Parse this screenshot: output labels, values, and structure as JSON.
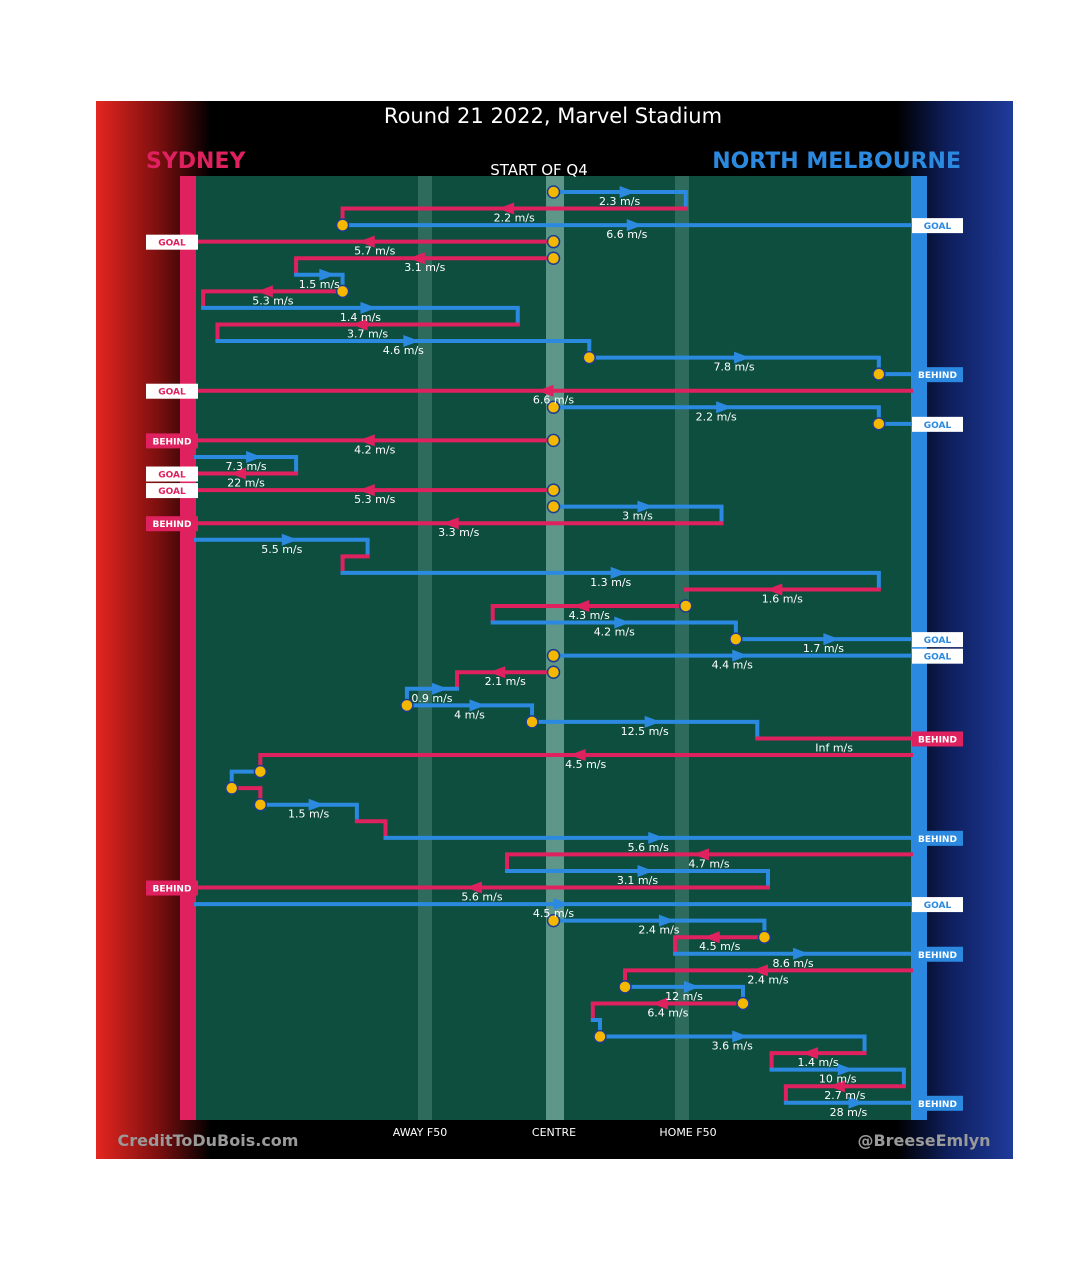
{
  "header": {
    "title": "Round 21 2022, Marvel Stadium",
    "quarter_label": "START OF Q4",
    "home_team": "SYDNEY",
    "away_team": "NORTH MELBOURNE"
  },
  "footer": {
    "credit_left": "CreditToDuBois.com",
    "credit_right": "@BreeseEmlyn",
    "axis_labels": [
      "AWAY F50",
      "CENTRE",
      "HOME F50"
    ]
  },
  "colors": {
    "sydney": "#e0215f",
    "north": "#2b8ae0",
    "field": "#0d4e3f",
    "stop": "#f5b800",
    "stop_edge": "#1a3d8f"
  },
  "chart_data": {
    "type": "line",
    "title": "Round 21 2022, Marvel Stadium",
    "subtitle": "START OF Q4",
    "x_axis": {
      "range": [
        0,
        100
      ],
      "tick_labels": [
        {
          "x": 33.5,
          "label": "AWAY F50"
        },
        {
          "x": 50,
          "label": "CENTRE"
        },
        {
          "x": 67.5,
          "label": "HOME F50"
        }
      ]
    },
    "series": [
      {
        "name": "SYDNEY",
        "color": "#e0215f"
      },
      {
        "name": "NORTH MELBOURNE",
        "color": "#2b8ae0"
      }
    ],
    "chains": [
      {
        "team": "north",
        "row": 0,
        "x0": 50,
        "x1": 68.5,
        "speed": "2.3 m/s",
        "dir": 1,
        "stop": "start",
        "end_drop": 1
      },
      {
        "team": "sydney",
        "row": 1,
        "x0": 68.5,
        "x1": 20.5,
        "speed": "2.2 m/s",
        "dir": -1,
        "end_drop": 1
      },
      {
        "team": "north",
        "row": 2,
        "x0": 20.5,
        "x1": 100,
        "speed": "6.6 m/s",
        "dir": 1,
        "stop": "start",
        "outcome": "GOAL"
      },
      {
        "team": "sydney",
        "row": 3,
        "x0": 50,
        "x1": 0,
        "speed": "5.7 m/s",
        "dir": -1,
        "stop": "start",
        "outcome": "GOAL"
      },
      {
        "team": "sydney",
        "row": 4,
        "x0": 50,
        "x1": 14,
        "speed": "3.1 m/s",
        "dir": -1,
        "stop": "start",
        "end_drop": 1
      },
      {
        "team": "north",
        "row": 5,
        "x0": 14,
        "x1": 20.5,
        "speed": "1.5 m/s",
        "dir": 1,
        "end_drop": 1
      },
      {
        "team": "sydney",
        "row": 6,
        "x0": 20.5,
        "x1": 1,
        "speed": "5.3 m/s",
        "dir": -1,
        "stop": "start",
        "end_drop": 1
      },
      {
        "team": "north",
        "row": 7,
        "x0": 1,
        "x1": 45,
        "speed": "1.4 m/s",
        "dir": 1,
        "end_drop": 1
      },
      {
        "team": "sydney",
        "row": 8,
        "x0": 45,
        "x1": 3,
        "speed": "3.7 m/s",
        "dir": -1,
        "end_drop": 1
      },
      {
        "team": "north",
        "row": 9,
        "x0": 3,
        "x1": 55,
        "speed": "4.6 m/s",
        "dir": 1,
        "end_drop": 1
      },
      {
        "team": "north",
        "row": 10,
        "x0": 55,
        "x1": 95.5,
        "speed": "7.8 m/s",
        "dir": 1,
        "stop": "start",
        "end_drop": 1
      },
      {
        "team": "north",
        "row": 11,
        "x0": 95.5,
        "x1": 100,
        "speed": "",
        "dir": 0,
        "stop": "start",
        "outcome": "BEHIND"
      },
      {
        "team": "sydney",
        "row": 12,
        "x0": 100,
        "x1": 0,
        "speed": "6.6 m/s",
        "dir": -1,
        "outcome": "GOAL"
      },
      {
        "team": "north",
        "row": 13,
        "x0": 50,
        "x1": 95.5,
        "speed": "2.2 m/s",
        "dir": 1,
        "stop": "start",
        "end_drop": 1
      },
      {
        "team": "north",
        "row": 14,
        "x0": 95.5,
        "x1": 100,
        "speed": "",
        "dir": 0,
        "stop": "start",
        "outcome": "GOAL"
      },
      {
        "team": "sydney",
        "row": 15,
        "x0": 50,
        "x1": 0,
        "speed": "4.2 m/s",
        "dir": -1,
        "stop": "start",
        "outcome": "BEHIND"
      },
      {
        "team": "north",
        "row": 16,
        "x0": 0,
        "x1": 14,
        "speed": "7.3 m/s",
        "dir": 1,
        "end_drop": 1
      },
      {
        "team": "sydney",
        "row": 17,
        "x0": 14,
        "x1": 0,
        "speed": "22 m/s",
        "dir": -1,
        "outcome": "GOAL"
      },
      {
        "team": "sydney",
        "row": 18,
        "x0": 50,
        "x1": 0,
        "speed": "5.3 m/s",
        "dir": -1,
        "stop": "start",
        "outcome": "GOAL"
      },
      {
        "team": "north",
        "row": 19,
        "x0": 50,
        "x1": 73.5,
        "speed": "3 m/s",
        "dir": 1,
        "stop": "start",
        "end_drop": 1
      },
      {
        "team": "sydney",
        "row": 20,
        "x0": 73.5,
        "x1": 0,
        "speed": "3.3 m/s",
        "dir": -1,
        "outcome": "BEHIND"
      },
      {
        "team": "north",
        "row": 21,
        "x0": 0,
        "x1": 24,
        "speed": "5.5 m/s",
        "dir": 1,
        "end_drop": 1
      },
      {
        "team": "sydney",
        "row": 22,
        "x0": 24,
        "x1": 20.5,
        "speed": "",
        "dir": 0,
        "end_drop": 1
      },
      {
        "team": "north",
        "row": 23,
        "x0": 20.5,
        "x1": 95.5,
        "speed": "1.3 m/s",
        "dir": 1,
        "end_drop": 1
      },
      {
        "team": "sydney",
        "row": 24,
        "x0": 95.5,
        "x1": 68.5,
        "speed": "1.6 m/s",
        "dir": -1,
        "end_drop": 0
      },
      {
        "team": "sydney",
        "row": 25,
        "x0": 68.5,
        "x1": 41.5,
        "speed": "4.3 m/s",
        "dir": -1,
        "stop": "start",
        "end_drop": 1
      },
      {
        "team": "north",
        "row": 26,
        "x0": 41.5,
        "x1": 75.5,
        "speed": "4.2 m/s",
        "dir": 1,
        "end_drop": 1
      },
      {
        "team": "north",
        "row": 27,
        "x0": 75.5,
        "x1": 100,
        "speed": "1.7 m/s",
        "dir": 1,
        "stop": "start",
        "outcome": "GOAL"
      },
      {
        "team": "north",
        "row": 28,
        "x0": 50,
        "x1": 100,
        "speed": "4.4 m/s",
        "dir": 1,
        "stop": "start",
        "outcome": "GOAL"
      },
      {
        "team": "sydney",
        "row": 29,
        "x0": 50,
        "x1": 36.5,
        "speed": "2.1 m/s",
        "dir": -1,
        "stop": "start",
        "end_drop": 1
      },
      {
        "team": "north",
        "row": 30,
        "x0": 36.5,
        "x1": 29.5,
        "speed": "0.9 m/s",
        "dir": 1,
        "end_drop": 1
      },
      {
        "team": "north",
        "row": 31,
        "x0": 29.5,
        "x1": 47,
        "speed": "4 m/s",
        "dir": 1,
        "stop": "start",
        "end_drop": 1
      },
      {
        "team": "north",
        "row": 32,
        "x0": 47,
        "x1": 78.5,
        "speed": "12.5 m/s",
        "dir": 1,
        "stop": "start",
        "end_drop": 1
      },
      {
        "team": "sydney",
        "row": 33,
        "x0": 78.5,
        "x1": 100,
        "speed": "Inf m/s",
        "dir": 0,
        "outcome": "BEHIND"
      },
      {
        "team": "sydney",
        "row": 34,
        "x0": 100,
        "x1": 9,
        "speed": "4.5 m/s",
        "dir": -1,
        "end_drop": 1
      },
      {
        "team": "north",
        "row": 35,
        "x0": 9,
        "x1": 5,
        "speed": "",
        "dir": 0,
        "stop": "start",
        "end_drop": 1
      },
      {
        "team": "sydney",
        "row": 36,
        "x0": 5,
        "x1": 9,
        "speed": "",
        "dir": 0,
        "stop": "start",
        "end_drop": 1
      },
      {
        "team": "north",
        "row": 37,
        "x0": 9,
        "x1": 22.5,
        "speed": "1.5 m/s",
        "dir": 1,
        "stop": "start",
        "end_drop": 1
      },
      {
        "team": "sydney",
        "row": 38,
        "x0": 22.5,
        "x1": 26.5,
        "speed": "",
        "dir": 0,
        "end_drop": 1
      },
      {
        "team": "north",
        "row": 39,
        "x0": 26.5,
        "x1": 100,
        "speed": "5.6 m/s",
        "dir": 1,
        "outcome": "BEHIND"
      },
      {
        "team": "sydney",
        "row": 40,
        "x0": 100,
        "x1": 43.5,
        "speed": "4.7 m/s",
        "dir": -1,
        "end_drop": 1
      },
      {
        "team": "north",
        "row": 41,
        "x0": 43.5,
        "x1": 80,
        "speed": "3.1 m/s",
        "dir": 1,
        "end_drop": 1
      },
      {
        "team": "sydney",
        "row": 42,
        "x0": 80,
        "x1": 0,
        "speed": "5.6 m/s",
        "dir": -1,
        "outcome": "BEHIND"
      },
      {
        "team": "north",
        "row": 43,
        "x0": 0,
        "x1": 100,
        "speed": "4.5 m/s",
        "dir": 1,
        "outcome": "GOAL"
      },
      {
        "team": "north",
        "row": 44,
        "x0": 50,
        "x1": 79.5,
        "speed": "2.4 m/s",
        "dir": 1,
        "stop": "start",
        "end_drop": 1
      },
      {
        "team": "sydney",
        "row": 45,
        "x0": 79.5,
        "x1": 67,
        "speed": "4.5 m/s",
        "dir": -1,
        "stop": "start",
        "end_drop": 1
      },
      {
        "team": "north",
        "row": 46,
        "x0": 67,
        "x1": 100,
        "speed": "8.6 m/s",
        "dir": 1,
        "outcome": "BEHIND"
      },
      {
        "team": "sydney",
        "row": 47,
        "x0": 100,
        "x1": 60,
        "speed": "2.4 m/s",
        "dir": -1,
        "end_drop": 1
      },
      {
        "team": "north",
        "row": 48,
        "x0": 60,
        "x1": 76.5,
        "speed": "12 m/s",
        "dir": 1,
        "stop": "start",
        "end_drop": 1
      },
      {
        "team": "sydney",
        "row": 49,
        "x0": 76.5,
        "x1": 55.5,
        "speed": "6.4 m/s",
        "dir": -1,
        "stop": "start",
        "end_drop": 1
      },
      {
        "team": "north",
        "row": 50,
        "x0": 55.5,
        "x1": 56.5,
        "speed": "",
        "dir": 0,
        "end_drop": 1
      },
      {
        "team": "north",
        "row": 51,
        "x0": 56.5,
        "x1": 93.5,
        "speed": "3.6 m/s",
        "dir": 1,
        "stop": "start",
        "end_drop": 1
      },
      {
        "team": "sydney",
        "row": 52,
        "x0": 93.5,
        "x1": 80.5,
        "speed": "1.4 m/s",
        "dir": -1,
        "end_drop": 1
      },
      {
        "team": "north",
        "row": 53,
        "x0": 80.5,
        "x1": 99,
        "speed": "10 m/s",
        "dir": 1,
        "end_drop": 1
      },
      {
        "team": "sydney",
        "row": 54,
        "x0": 99,
        "x1": 82.5,
        "speed": "2.7 m/s",
        "dir": -1,
        "end_drop": 1
      },
      {
        "team": "north",
        "row": 55,
        "x0": 82.5,
        "x1": 100,
        "speed": "28 m/s",
        "dir": 1,
        "outcome": "BEHIND"
      }
    ]
  }
}
